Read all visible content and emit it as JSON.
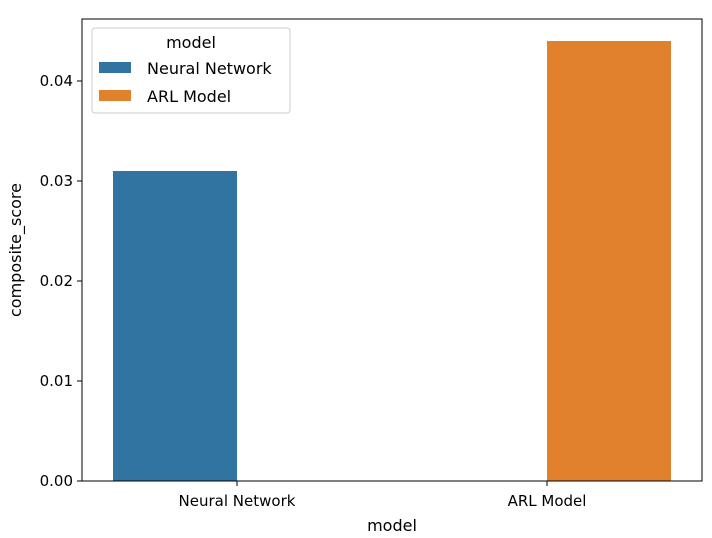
{
  "chart_data": {
    "type": "bar",
    "categories": [
      "Neural Network",
      "ARL Model"
    ],
    "series": [
      {
        "name": "Neural Network",
        "values": [
          0.031,
          null
        ],
        "color": "#3274a1"
      },
      {
        "name": "ARL Model",
        "values": [
          null,
          0.044
        ],
        "color": "#e1812c"
      }
    ],
    "xlabel": "model",
    "ylabel": "composite_score",
    "ylim": [
      0,
      0.0462
    ],
    "yticks": [
      "0.00",
      "0.01",
      "0.02",
      "0.03",
      "0.04"
    ],
    "legend": {
      "title": "model",
      "placement": "top-left"
    },
    "grid": false
  }
}
